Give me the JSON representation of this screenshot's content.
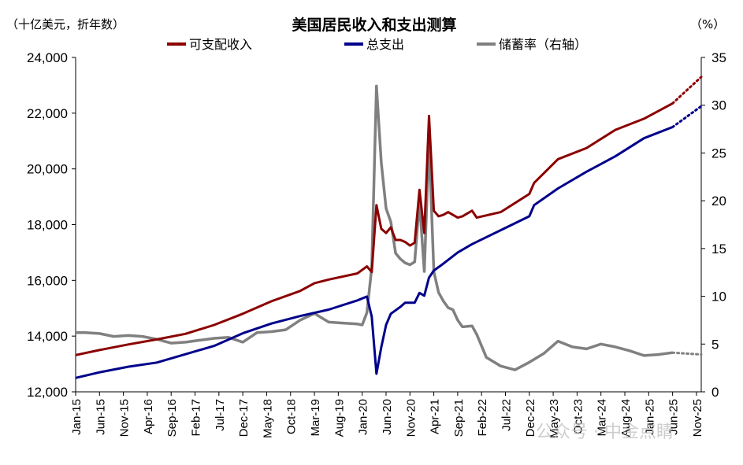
{
  "chart_data": {
    "type": "line",
    "title": "美国居民收入和支出测算",
    "left_unit": "（十亿美元，折年数）",
    "right_unit": "（%）",
    "colors": {
      "income": "#8B0000",
      "spending": "#00008B",
      "saving": "#808080"
    },
    "y_left": {
      "min": 12000,
      "max": 24000,
      "ticks": [
        "12,000",
        "14,000",
        "16,000",
        "18,000",
        "20,000",
        "22,000",
        "24,000"
      ]
    },
    "y_right": {
      "min": 0,
      "max": 35,
      "ticks": [
        "0",
        "5",
        "10",
        "15",
        "20",
        "25",
        "30",
        "35"
      ]
    },
    "x_start": "2015-01",
    "x_end": "2025-12",
    "x_ticks": [
      "Jan-15",
      "Jun-15",
      "Nov-15",
      "Apr-16",
      "Sep-16",
      "Feb-17",
      "Jul-17",
      "Dec-17",
      "May-18",
      "Oct-18",
      "Mar-19",
      "Aug-19",
      "Jan-20",
      "Jun-20",
      "Nov-20",
      "Apr-21",
      "Sep-21",
      "Feb-22",
      "Jul-22",
      "Dec-22",
      "May-23",
      "Oct-23",
      "Mar-24",
      "Aug-24",
      "Jan-25",
      "Jun-25",
      "Nov-25"
    ],
    "series": [
      {
        "name": "可支配收入",
        "axis": "left",
        "points": [
          [
            "2015-01",
            13320
          ],
          [
            "2015-06",
            13500
          ],
          [
            "2015-12",
            13700
          ],
          [
            "2016-06",
            13880
          ],
          [
            "2016-12",
            14080
          ],
          [
            "2017-06",
            14400
          ],
          [
            "2017-12",
            14800
          ],
          [
            "2018-06",
            15250
          ],
          [
            "2018-12",
            15620
          ],
          [
            "2019-03",
            15900
          ],
          [
            "2019-06",
            16030
          ],
          [
            "2019-12",
            16250
          ],
          [
            "2020-02",
            16500
          ],
          [
            "2020-03",
            16300
          ],
          [
            "2020-04",
            18700
          ],
          [
            "2020-05",
            17850
          ],
          [
            "2020-06",
            17700
          ],
          [
            "2020-07",
            17900
          ],
          [
            "2020-08",
            17450
          ],
          [
            "2020-09",
            17450
          ],
          [
            "2020-10",
            17380
          ],
          [
            "2020-11",
            17250
          ],
          [
            "2020-12",
            17350
          ],
          [
            "2021-01",
            19250
          ],
          [
            "2021-02",
            17700
          ],
          [
            "2021-03",
            21900
          ],
          [
            "2021-04",
            18500
          ],
          [
            "2021-05",
            18300
          ],
          [
            "2021-06",
            18350
          ],
          [
            "2021-07",
            18450
          ],
          [
            "2021-08",
            18350
          ],
          [
            "2021-09",
            18250
          ],
          [
            "2021-10",
            18300
          ],
          [
            "2021-12",
            18500
          ],
          [
            "2022-01",
            18250
          ],
          [
            "2022-06",
            18450
          ],
          [
            "2022-12",
            19100
          ],
          [
            "2023-01",
            19500
          ],
          [
            "2023-06",
            20350
          ],
          [
            "2023-12",
            20750
          ],
          [
            "2024-06",
            21400
          ],
          [
            "2024-12",
            21800
          ],
          [
            "2025-06",
            22350
          ]
        ],
        "forecast": [
          [
            "2025-06",
            22350
          ],
          [
            "2025-12",
            23300
          ]
        ]
      },
      {
        "name": "总支出",
        "axis": "left",
        "points": [
          [
            "2015-01",
            12500
          ],
          [
            "2015-06",
            12700
          ],
          [
            "2015-12",
            12900
          ],
          [
            "2016-06",
            13050
          ],
          [
            "2016-12",
            13350
          ],
          [
            "2017-06",
            13650
          ],
          [
            "2017-12",
            14100
          ],
          [
            "2018-06",
            14450
          ],
          [
            "2018-12",
            14720
          ],
          [
            "2019-06",
            14950
          ],
          [
            "2019-12",
            15280
          ],
          [
            "2020-02",
            15420
          ],
          [
            "2020-03",
            14700
          ],
          [
            "2020-04",
            12650
          ],
          [
            "2020-05",
            13600
          ],
          [
            "2020-06",
            14400
          ],
          [
            "2020-07",
            14800
          ],
          [
            "2020-09",
            15050
          ],
          [
            "2020-10",
            15200
          ],
          [
            "2020-12",
            15200
          ],
          [
            "2021-01",
            15550
          ],
          [
            "2021-02",
            15450
          ],
          [
            "2021-03",
            16100
          ],
          [
            "2021-04",
            16350
          ],
          [
            "2021-06",
            16600
          ],
          [
            "2021-09",
            17000
          ],
          [
            "2021-12",
            17300
          ],
          [
            "2022-06",
            17800
          ],
          [
            "2022-12",
            18300
          ],
          [
            "2023-01",
            18700
          ],
          [
            "2023-06",
            19300
          ],
          [
            "2023-12",
            19900
          ],
          [
            "2024-06",
            20450
          ],
          [
            "2024-12",
            21100
          ],
          [
            "2025-06",
            21500
          ]
        ],
        "forecast": [
          [
            "2025-06",
            21500
          ],
          [
            "2025-12",
            22250
          ]
        ]
      },
      {
        "name": "储蓄率（右轴）",
        "axis": "right",
        "points": [
          [
            "2015-01",
            6.2
          ],
          [
            "2015-03",
            6.2
          ],
          [
            "2015-06",
            6.1
          ],
          [
            "2015-09",
            5.8
          ],
          [
            "2015-12",
            5.9
          ],
          [
            "2016-03",
            5.8
          ],
          [
            "2016-06",
            5.5
          ],
          [
            "2016-09",
            5.1
          ],
          [
            "2016-12",
            5.2
          ],
          [
            "2017-03",
            5.4
          ],
          [
            "2017-06",
            5.6
          ],
          [
            "2017-09",
            5.7
          ],
          [
            "2017-12",
            5.2
          ],
          [
            "2018-03",
            6.2
          ],
          [
            "2018-06",
            6.3
          ],
          [
            "2018-09",
            6.5
          ],
          [
            "2018-12",
            7.5
          ],
          [
            "2019-03",
            8.2
          ],
          [
            "2019-06",
            7.3
          ],
          [
            "2019-09",
            7.2
          ],
          [
            "2019-12",
            7.1
          ],
          [
            "2020-01",
            7.0
          ],
          [
            "2020-02",
            8.3
          ],
          [
            "2020-03",
            13.0
          ],
          [
            "2020-04",
            32.0
          ],
          [
            "2020-05",
            24.0
          ],
          [
            "2020-06",
            19.2
          ],
          [
            "2020-07",
            17.8
          ],
          [
            "2020-08",
            14.5
          ],
          [
            "2020-09",
            13.9
          ],
          [
            "2020-10",
            13.5
          ],
          [
            "2020-11",
            13.3
          ],
          [
            "2020-12",
            13.6
          ],
          [
            "2021-01",
            19.9
          ],
          [
            "2021-02",
            12.6
          ],
          [
            "2021-03",
            26.3
          ],
          [
            "2021-04",
            12.6
          ],
          [
            "2021-05",
            10.4
          ],
          [
            "2021-06",
            9.5
          ],
          [
            "2021-07",
            8.8
          ],
          [
            "2021-08",
            8.6
          ],
          [
            "2021-09",
            7.5
          ],
          [
            "2021-10",
            6.8
          ],
          [
            "2021-12",
            6.9
          ],
          [
            "2022-01",
            6.0
          ],
          [
            "2022-03",
            3.6
          ],
          [
            "2022-06",
            2.7
          ],
          [
            "2022-09",
            2.3
          ],
          [
            "2022-12",
            3.1
          ],
          [
            "2023-03",
            4.0
          ],
          [
            "2023-06",
            5.3
          ],
          [
            "2023-09",
            4.7
          ],
          [
            "2023-12",
            4.5
          ],
          [
            "2024-03",
            5.0
          ],
          [
            "2024-06",
            4.7
          ],
          [
            "2024-09",
            4.3
          ],
          [
            "2024-12",
            3.8
          ],
          [
            "2025-03",
            3.9
          ],
          [
            "2025-06",
            4.1
          ]
        ],
        "forecast": [
          [
            "2025-06",
            4.1
          ],
          [
            "2025-12",
            3.9
          ]
        ]
      }
    ]
  },
  "watermark": "公众号 · 中金点睛"
}
